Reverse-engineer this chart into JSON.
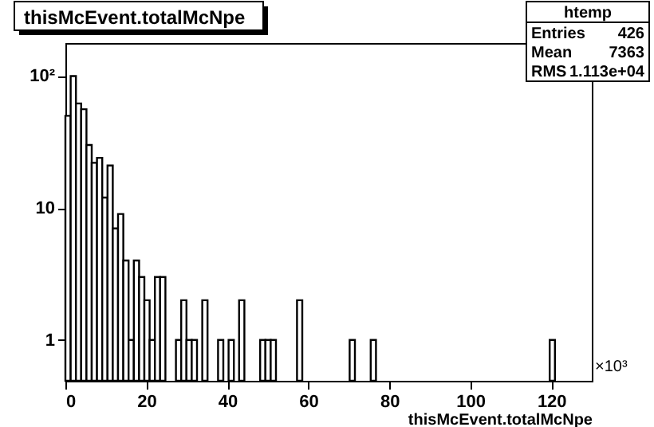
{
  "chart_data": {
    "type": "histogram",
    "title": "thisMcEvent.totalMcNpe",
    "xlabel": "thisMcEvent.totalMcNpe",
    "color": "#000000",
    "log": true,
    "bins": [
      0,
      1.3,
      2.6,
      3.9,
      5.2,
      6.5,
      7.8,
      9.1,
      10.4,
      11.7,
      13,
      14.3,
      15.6,
      16.9,
      18.2,
      19.5,
      20.8,
      22.1,
      23.4,
      24.7,
      26,
      27.3,
      28.6,
      29.9,
      31.2,
      32.5,
      33.8,
      35.1,
      36.4,
      37.7,
      39,
      40.3,
      41.6,
      42.9,
      44.2,
      45.5,
      46.8,
      48.1,
      49.4,
      50.7,
      52,
      53.3,
      54.6,
      55.9,
      57.2,
      58.5,
      59.8,
      61.1,
      62.4,
      63.7,
      65,
      66.3,
      67.6,
      68.9,
      70.2,
      71.5,
      72.8,
      74.1,
      75.4,
      76.7,
      78,
      79.3,
      80.6,
      81.9,
      83.2,
      84.5,
      85.8,
      87.1,
      88.4,
      89.7,
      91,
      92.3,
      93.6,
      94.9,
      96.2,
      97.5,
      98.8,
      100.1,
      101.4,
      102.7,
      104,
      105.3,
      106.6,
      107.9,
      109.2,
      110.5,
      111.8,
      113.1,
      114.4,
      115.7,
      117,
      118.3,
      119.6,
      120.9,
      122.2,
      123.5,
      124.8,
      126.1,
      127.4,
      128.7,
      130
    ],
    "values": [
      50,
      100,
      62,
      56,
      30,
      22,
      24,
      12,
      21,
      7,
      9,
      4,
      1,
      4,
      3,
      2,
      1,
      3,
      3,
      null,
      null,
      1,
      2,
      1,
      1,
      null,
      2,
      null,
      null,
      1,
      null,
      1,
      null,
      2,
      null,
      null,
      null,
      1,
      1,
      1,
      null,
      null,
      null,
      null,
      2,
      null,
      null,
      null,
      null,
      null,
      null,
      null,
      null,
      null,
      1,
      null,
      null,
      null,
      1,
      null,
      null,
      null,
      null,
      null,
      null,
      null,
      null,
      null,
      null,
      null,
      null,
      null,
      null,
      null,
      null,
      null,
      null,
      null,
      null,
      null,
      null,
      null,
      null,
      null,
      null,
      null,
      null,
      null,
      null,
      null,
      null,
      null,
      1,
      null,
      null,
      null,
      null,
      null,
      null,
      null
    ],
    "xlim": [
      0,
      130
    ],
    "xticks": [
      0,
      20,
      40,
      60,
      80,
      100,
      120
    ],
    "ylim": [
      0.49,
      178
    ],
    "yticks": [
      1,
      10,
      {
        "value": 100,
        "label": "10²"
      }
    ],
    "annotations": [
      "htemp",
      "Entries 426",
      "Mean 7363",
      "RMS 1.113e+04",
      "×10³"
    ]
  }
}
